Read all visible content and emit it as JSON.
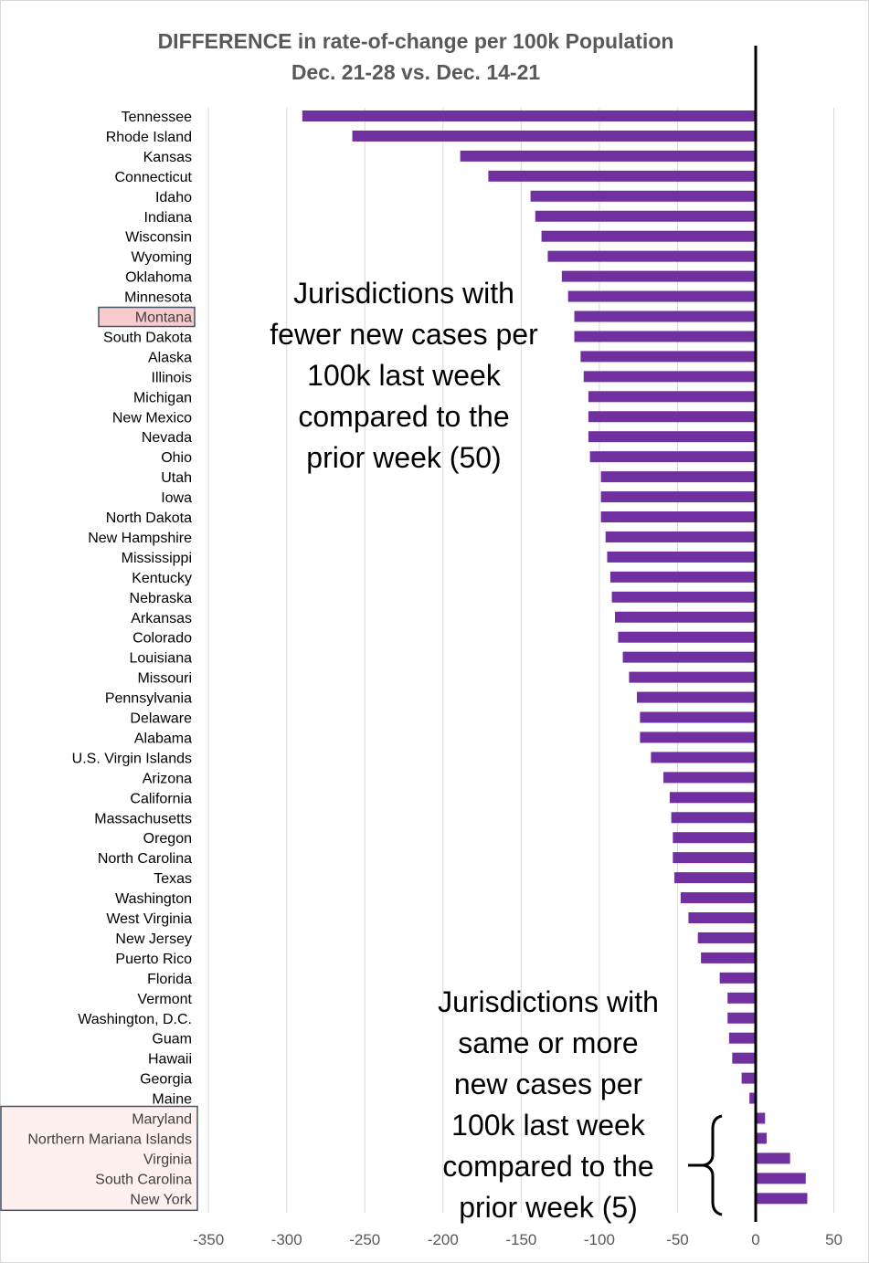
{
  "chart_data": {
    "type": "bar",
    "orientation": "horizontal",
    "title": "DIFFERENCE in rate-of-change per 100k Population",
    "subtitle": "Dec. 21-28 vs. Dec. 14-21",
    "xlim": [
      -350,
      50
    ],
    "xticks": [
      -350,
      -300,
      -250,
      -200,
      -150,
      -100,
      -50,
      0,
      50
    ],
    "grid": true,
    "categories": [
      "Tennessee",
      "Rhode Island",
      "Kansas",
      "Connecticut",
      "Idaho",
      "Indiana",
      "Wisconsin",
      "Wyoming",
      "Oklahoma",
      "Minnesota",
      "Montana",
      "South Dakota",
      "Alaska",
      "Illinois",
      "Michigan",
      "New Mexico",
      "Nevada",
      "Ohio",
      "Utah",
      "Iowa",
      "North Dakota",
      "New Hampshire",
      "Mississippi",
      "Kentucky",
      "Nebraska",
      "Arkansas",
      "Colorado",
      "Louisiana",
      "Missouri",
      "Pennsylvania",
      "Delaware",
      "Alabama",
      "U.S. Virgin Islands",
      "Arizona",
      "California",
      "Massachusetts",
      "Oregon",
      "North Carolina",
      "Texas",
      "Washington",
      "West Virginia",
      "New Jersey",
      "Puerto Rico",
      "Florida",
      "Vermont",
      "Washington, D.C.",
      "Guam",
      "Hawaii",
      "Georgia",
      "Maine",
      "Maryland",
      "Northern Mariana Islands",
      "Virginia",
      "South Carolina",
      "New York"
    ],
    "values": [
      -290,
      -258,
      -189,
      -171,
      -144,
      -141,
      -137,
      -133,
      -124,
      -120,
      -116,
      -116,
      -112,
      -110,
      -107,
      -107,
      -107,
      -106,
      -99,
      -99,
      -99,
      -96,
      -95,
      -93,
      -92,
      -90,
      -88,
      -85,
      -81,
      -76,
      -74,
      -74,
      -67,
      -59,
      -55,
      -54,
      -53,
      -53,
      -52,
      -48,
      -43,
      -37,
      -35,
      -23,
      -18,
      -18,
      -17,
      -15,
      -9,
      -4,
      6,
      7,
      22,
      32,
      33
    ],
    "bar_color": "#7030A0",
    "highlighted": [
      "Montana"
    ],
    "group_box": [
      "Maryland",
      "Northern Mariana Islands",
      "Virginia",
      "South Carolina",
      "New York"
    ],
    "annotations": [
      {
        "id": "fewer",
        "lines": [
          "Jurisdictions with",
          "fewer new cases per",
          "100k last week",
          "compared to the",
          "prior week (50)"
        ]
      },
      {
        "id": "more",
        "lines": [
          "Jurisdictions with",
          "same or more",
          "new cases per",
          "100k last week",
          "compared to the",
          "prior week (5)"
        ]
      }
    ]
  }
}
